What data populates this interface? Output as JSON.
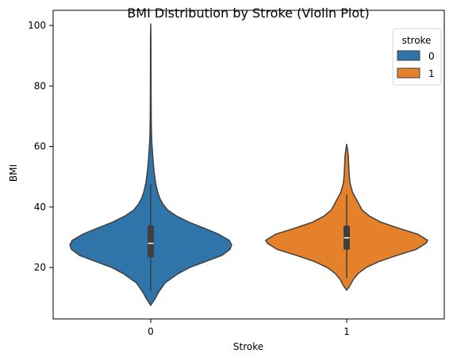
{
  "chart_data": {
    "type": "violin",
    "title": "BMI Distribution by Stroke (Violin Plot)",
    "xlabel": "Stroke",
    "ylabel": "BMI",
    "categories": [
      "0",
      "1"
    ],
    "ylim": [
      3,
      105
    ],
    "yticks": [
      20,
      40,
      60,
      80,
      100
    ],
    "grid": false,
    "legend": {
      "title": "stroke",
      "placement": "top-right",
      "entries": [
        {
          "label": "0",
          "color": "#2f75aa"
        },
        {
          "label": "1",
          "color": "#e6812b"
        }
      ]
    },
    "series": [
      {
        "name": "0",
        "category": "0",
        "color": "#2f75aa",
        "box": {
          "q1": 23.5,
          "median": 28.0,
          "q3": 33.8,
          "whisker_low": 12.0,
          "whisker_high": 47.5
        },
        "density_profile": [
          {
            "y": 7.5,
            "w": 0.0
          },
          {
            "y": 10,
            "w": 0.06
          },
          {
            "y": 12,
            "w": 0.1
          },
          {
            "y": 15,
            "w": 0.18
          },
          {
            "y": 18,
            "w": 0.34
          },
          {
            "y": 20,
            "w": 0.48
          },
          {
            "y": 22,
            "w": 0.68
          },
          {
            "y": 24,
            "w": 0.88
          },
          {
            "y": 26,
            "w": 0.98
          },
          {
            "y": 27.5,
            "w": 1.0
          },
          {
            "y": 29,
            "w": 0.97
          },
          {
            "y": 31,
            "w": 0.84
          },
          {
            "y": 33,
            "w": 0.66
          },
          {
            "y": 35,
            "w": 0.47
          },
          {
            "y": 37,
            "w": 0.32
          },
          {
            "y": 39,
            "w": 0.21
          },
          {
            "y": 41,
            "w": 0.15
          },
          {
            "y": 43,
            "w": 0.11
          },
          {
            "y": 45,
            "w": 0.085
          },
          {
            "y": 48,
            "w": 0.06
          },
          {
            "y": 52,
            "w": 0.04
          },
          {
            "y": 55,
            "w": 0.03
          },
          {
            "y": 58,
            "w": 0.022
          },
          {
            "y": 62,
            "w": 0.012
          },
          {
            "y": 66,
            "w": 0.008
          },
          {
            "y": 70,
            "w": 0.006
          },
          {
            "y": 80,
            "w": 0.004
          },
          {
            "y": 90,
            "w": 0.003
          },
          {
            "y": 97,
            "w": 0.002
          },
          {
            "y": 100.5,
            "w": 0.0
          }
        ]
      },
      {
        "name": "1",
        "category": "1",
        "color": "#e6812b",
        "box": {
          "q1": 26.0,
          "median": 29.8,
          "q3": 33.7,
          "whisker_low": 16.5,
          "whisker_high": 44.2
        },
        "density_profile": [
          {
            "y": 12.5,
            "w": 0.0
          },
          {
            "y": 14,
            "w": 0.04
          },
          {
            "y": 16,
            "w": 0.08
          },
          {
            "y": 18,
            "w": 0.14
          },
          {
            "y": 20,
            "w": 0.24
          },
          {
            "y": 22,
            "w": 0.4
          },
          {
            "y": 24,
            "w": 0.62
          },
          {
            "y": 26,
            "w": 0.86
          },
          {
            "y": 28,
            "w": 0.98
          },
          {
            "y": 29,
            "w": 1.0
          },
          {
            "y": 31,
            "w": 0.88
          },
          {
            "y": 33,
            "w": 0.64
          },
          {
            "y": 35,
            "w": 0.42
          },
          {
            "y": 37,
            "w": 0.28
          },
          {
            "y": 39,
            "w": 0.19
          },
          {
            "y": 41,
            "w": 0.15
          },
          {
            "y": 43,
            "w": 0.11
          },
          {
            "y": 45,
            "w": 0.07
          },
          {
            "y": 48,
            "w": 0.04
          },
          {
            "y": 51,
            "w": 0.03
          },
          {
            "y": 54,
            "w": 0.025
          },
          {
            "y": 57,
            "w": 0.02
          },
          {
            "y": 59,
            "w": 0.01
          },
          {
            "y": 60.7,
            "w": 0.0
          }
        ]
      }
    ]
  }
}
